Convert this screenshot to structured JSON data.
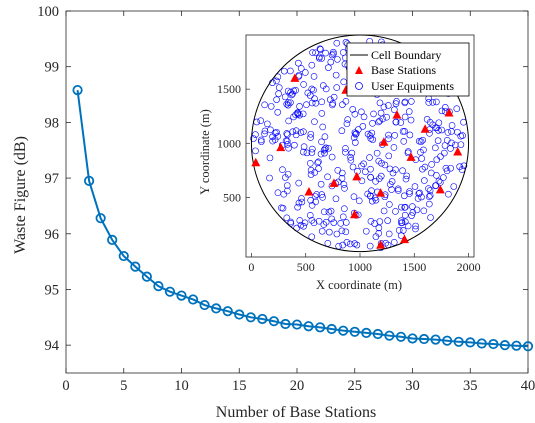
{
  "chart_data": [
    {
      "type": "line",
      "xlabel": "Number of Base Stations",
      "ylabel": "Waste Figure (dB)",
      "xlim": [
        0,
        40
      ],
      "ylim": [
        93.5,
        100
      ],
      "xticks": [
        0,
        5,
        10,
        15,
        20,
        25,
        30,
        35,
        40
      ],
      "yticks": [
        94,
        95,
        96,
        97,
        98,
        99,
        100
      ],
      "grid": false,
      "color": "#0072bd",
      "marker": "circle",
      "series": [
        {
          "x": [
            1,
            2,
            3,
            4,
            5,
            6,
            7,
            8,
            9,
            10,
            11,
            12,
            13,
            14,
            15,
            16,
            17,
            18,
            19,
            20,
            21,
            22,
            23,
            24,
            25,
            26,
            27,
            28,
            29,
            30,
            31,
            32,
            33,
            34,
            35,
            36,
            37,
            38,
            39,
            40
          ],
          "values": [
            98.58,
            96.95,
            96.28,
            95.89,
            95.6,
            95.41,
            95.23,
            95.06,
            94.96,
            94.89,
            94.82,
            94.72,
            94.66,
            94.61,
            94.55,
            94.5,
            94.47,
            94.43,
            94.38,
            94.37,
            94.34,
            94.32,
            94.29,
            94.26,
            94.24,
            94.22,
            94.2,
            94.17,
            94.15,
            94.12,
            94.11,
            94.1,
            94.08,
            94.06,
            94.05,
            94.03,
            94.02,
            94.0,
            93.99,
            93.98
          ]
        }
      ]
    },
    {
      "type": "scatter",
      "xlabel": "X coordinate (m)",
      "ylabel": "Y coordinate (m)",
      "xlim": [
        -50,
        2050
      ],
      "ylim": [
        -50,
        2000
      ],
      "xticks": [
        0,
        500,
        1000,
        1500,
        2000
      ],
      "yticks": [
        500,
        1000,
        1500
      ],
      "legend_position": "top-right",
      "circle": {
        "name": "Cell Boundary",
        "center": [
          1000,
          1000
        ],
        "radius": 1000,
        "color": "#000000"
      },
      "base_stations": {
        "name": "Base Stations",
        "marker": "triangle",
        "color": "#ff0000",
        "points": [
          [
            400,
            1600
          ],
          [
            870,
            1490
          ],
          [
            1340,
            1260
          ],
          [
            1600,
            1130
          ],
          [
            1820,
            1280
          ],
          [
            270,
            960
          ],
          [
            40,
            820
          ],
          [
            760,
            630
          ],
          [
            970,
            690
          ],
          [
            1470,
            870
          ],
          [
            1900,
            920
          ],
          [
            530,
            550
          ],
          [
            1190,
            540
          ],
          [
            1740,
            570
          ],
          [
            950,
            340
          ],
          [
            1410,
            110
          ],
          [
            1190,
            60
          ],
          [
            1220,
            1010
          ]
        ]
      },
      "user_equipments": {
        "name": "User Equipments",
        "marker": "circle-open",
        "color": "#0000ff",
        "count": 480
      }
    }
  ]
}
